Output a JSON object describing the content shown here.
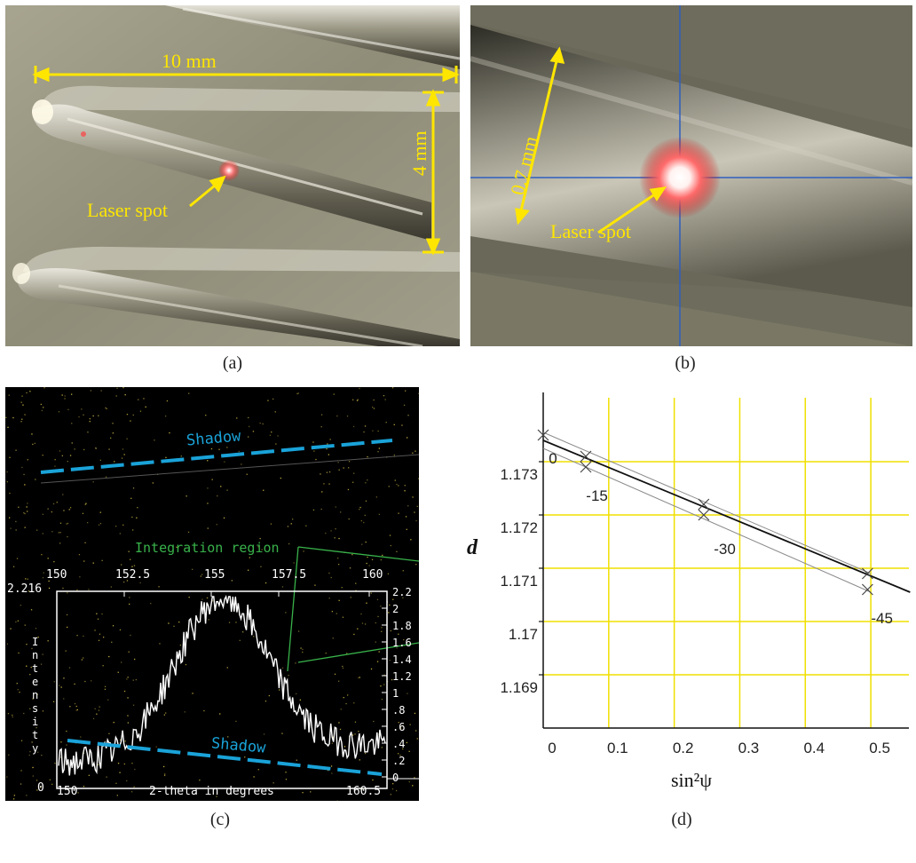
{
  "panel_a": {
    "caption": "(a)",
    "dim_width": "10 mm",
    "dim_height": "4 mm",
    "laser_label": "Laser spot"
  },
  "panel_b": {
    "caption": "(b)",
    "dim_diameter": "0.7 mm",
    "laser_label": "Laser spot"
  },
  "panel_c": {
    "caption": "(c)",
    "shadow_top": "Shadow",
    "shadow_bottom": "Shadow",
    "integration_label": "Integration region",
    "top_ticks": [
      "150",
      "152.5",
      "155",
      "157.5",
      "160"
    ],
    "bottom_ticks": [
      "150",
      "160.5"
    ],
    "x_axis_title": "2-theta in degrees",
    "y_max_label": "2.216",
    "y_min_label": "0",
    "y_axis_title": "Intensity",
    "right_ticks": [
      "2.2",
      "2",
      "1.8",
      "1.6",
      "1.4",
      "1.2",
      "1",
      ".8",
      ".6",
      ".4",
      ".2",
      "0"
    ]
  },
  "chart_data": {
    "type": "scatter",
    "title": "",
    "caption": "(d)",
    "xlabel": "sin²ψ",
    "ylabel": "d",
    "xlim": [
      0,
      0.55
    ],
    "ylim": [
      1.168,
      1.1742
    ],
    "x_ticks": [
      0,
      0.1,
      0.2,
      0.3,
      0.4,
      0.5
    ],
    "y_ticks": [
      1.169,
      1.17,
      1.171,
      1.172,
      1.173
    ],
    "x_tick_labels": [
      "0",
      "0.1",
      "0.2",
      "0.3",
      "0.4",
      "0.5"
    ],
    "y_tick_labels": [
      "1.169",
      "1.17",
      "1.171",
      "1.172",
      "1.173"
    ],
    "grid": true,
    "grid_color": "#f0e000",
    "points": [
      {
        "x": 0.0,
        "y": 1.1735
      },
      {
        "x": 0.065,
        "y": 1.1731
      },
      {
        "x": 0.065,
        "y": 1.1729
      },
      {
        "x": 0.245,
        "y": 1.1722
      },
      {
        "x": 0.245,
        "y": 1.172
      },
      {
        "x": 0.495,
        "y": 1.1709
      },
      {
        "x": 0.495,
        "y": 1.1706
      }
    ],
    "point_labels": [
      {
        "text": "0",
        "x": 0.003,
        "y": 1.1731
      },
      {
        "text": "-15",
        "x": 0.06,
        "y": 1.1724
      },
      {
        "text": "-30",
        "x": 0.255,
        "y": 1.1714
      },
      {
        "text": "-45",
        "x": 0.495,
        "y": 1.1701
      }
    ],
    "fit_line": {
      "x": [
        0.0,
        0.56
      ],
      "y": [
        1.1734,
        1.17055
      ]
    },
    "band_upper": {
      "x": [
        0.0,
        0.5
      ],
      "y": [
        1.17355,
        1.1709
      ]
    },
    "band_lower": {
      "x": [
        0.0,
        0.5
      ],
      "y": [
        1.17325,
        1.17055
      ]
    }
  }
}
